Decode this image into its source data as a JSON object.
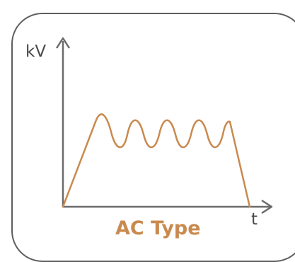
{
  "diagram": {
    "y_axis_label": "kV",
    "x_axis_label": "t",
    "caption": "AC Type"
  },
  "colors": {
    "axis": "#6b6b6b",
    "waveform": "#c98a4f",
    "caption": "#c98a4f",
    "border": "#5e5e5e"
  },
  "icons": {
    "waveform": "ac-voltage-waveform-icon"
  }
}
